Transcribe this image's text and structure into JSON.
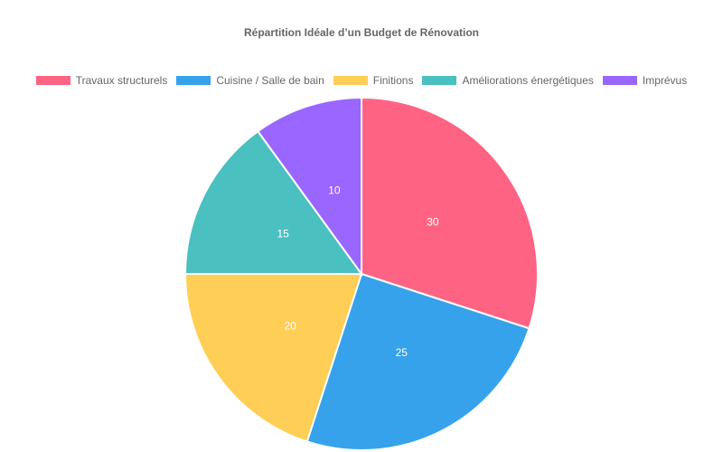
{
  "chart_data": {
    "type": "pie",
    "title": "Répartition Idéale d’un Budget de Rénovation",
    "categories": [
      "Travaux structurels",
      "Cuisine / Salle de bain",
      "Finitions",
      "Améliorations énergétiques",
      "Imprévus"
    ],
    "values": [
      30,
      25,
      20,
      15,
      10
    ],
    "colors": [
      "#ff6384",
      "#36a2eb",
      "#ffce56",
      "#4bc0c0",
      "#9966ff"
    ],
    "legend_position": "top",
    "data_labels": true
  },
  "title": "Répartition Idéale d’un Budget de Rénovation",
  "legend": [
    {
      "label": "Travaux structurels",
      "color": "#ff6384"
    },
    {
      "label": "Cuisine / Salle de bain",
      "color": "#36a2eb"
    },
    {
      "label": "Finitions",
      "color": "#ffce56"
    },
    {
      "label": "Améliorations énergétiques",
      "color": "#4bc0c0"
    },
    {
      "label": "Imprévus",
      "color": "#9966ff"
    }
  ]
}
